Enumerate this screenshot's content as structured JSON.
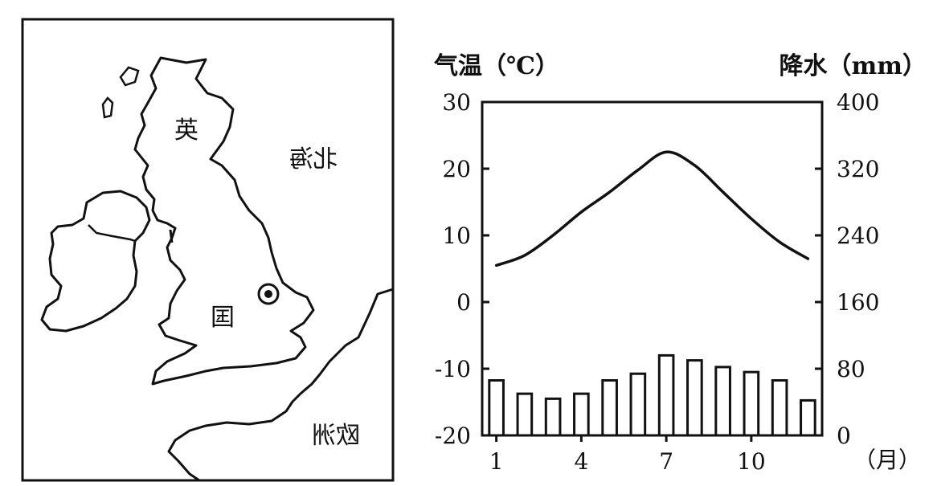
{
  "map": {
    "labels": {
      "ying": "英",
      "guo": "国",
      "beihai": "北海",
      "ouzhou": "欧洲"
    }
  },
  "chart_data": {
    "type": "bar+line",
    "title": "",
    "y_left_label": "气温（℃）",
    "y_right_label": "降水（mm）",
    "x_unit_label": "（月）",
    "x_ticks": [
      "1",
      "4",
      "7",
      "10"
    ],
    "y_left_ticks": [
      "30",
      "20",
      "10",
      "0",
      "-10",
      "-20"
    ],
    "y_right_ticks": [
      "400",
      "320",
      "240",
      "160",
      "80",
      "0"
    ],
    "y_left_range": [
      -20,
      30
    ],
    "y_right_range": [
      0,
      400
    ],
    "months": [
      1,
      2,
      3,
      4,
      5,
      6,
      7,
      8,
      9,
      10,
      11,
      12
    ],
    "temperature": [
      5.5,
      7,
      10,
      13.5,
      16.5,
      19.8,
      22.5,
      20.5,
      16.5,
      12.5,
      9,
      6.5
    ],
    "precipitation": [
      66,
      50,
      44,
      50,
      66,
      74,
      96,
      90,
      82,
      76,
      66,
      42
    ]
  }
}
